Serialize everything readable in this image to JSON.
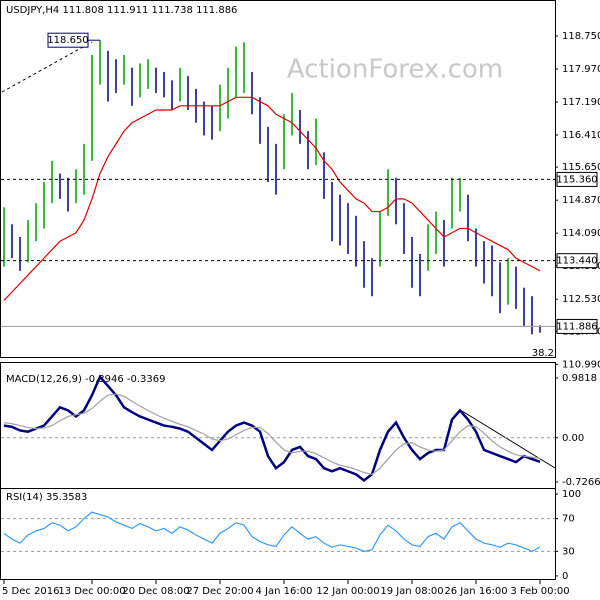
{
  "chart_data": [
    {
      "type": "ohlc",
      "title": "USDJPY,H4  111.808 111.911 111.738 111.886",
      "watermark": "ActionForex.com",
      "high": [
        114.7,
        114.3,
        114.0,
        114.4,
        114.8,
        115.3,
        115.8,
        115.5,
        115.4,
        115.6,
        116.2,
        118.3,
        118.65,
        118.4,
        118.2,
        118.3,
        118.0,
        118.1,
        118.2,
        118.0,
        117.9,
        117.7,
        118.0,
        117.8,
        117.5,
        117.2,
        117.1,
        117.6,
        118.0,
        118.5,
        118.6,
        117.9,
        117.3,
        116.6,
        116.2,
        116.9,
        117.4,
        117.0,
        116.5,
        116.8,
        116.0,
        115.3,
        115.0,
        114.8,
        114.5,
        113.9,
        113.5,
        114.6,
        115.6,
        115.4,
        114.8,
        114.0,
        113.6,
        114.3,
        114.6,
        114.4,
        115.4,
        115.4,
        115.0,
        114.2,
        113.9,
        113.8,
        113.4,
        113.5,
        113.3,
        112.8,
        112.6,
        111.911
      ],
      "low": [
        113.3,
        113.5,
        113.2,
        113.4,
        113.9,
        114.2,
        114.8,
        114.9,
        114.6,
        114.8,
        115.0,
        115.8,
        117.6,
        117.2,
        117.4,
        117.6,
        117.1,
        117.3,
        117.5,
        117.4,
        117.3,
        117.0,
        117.2,
        117.0,
        116.7,
        116.4,
        116.3,
        116.5,
        116.8,
        117.3,
        117.4,
        116.9,
        116.2,
        115.3,
        115.0,
        115.6,
        116.4,
        116.2,
        115.6,
        115.7,
        114.9,
        113.9,
        113.8,
        113.6,
        113.3,
        112.8,
        112.6,
        113.3,
        114.5,
        114.3,
        113.6,
        112.8,
        112.6,
        113.2,
        113.6,
        113.3,
        114.2,
        114.6,
        113.9,
        113.3,
        112.9,
        112.6,
        112.2,
        112.4,
        112.3,
        111.9,
        111.7,
        111.738
      ],
      "up_color": "#00a000",
      "down_color": "#000080",
      "series": [
        {
          "color": "#e00000",
          "values": [
            112.5,
            112.7,
            112.9,
            113.1,
            113.3,
            113.5,
            113.7,
            113.9,
            114.0,
            114.1,
            114.4,
            114.9,
            115.5,
            115.9,
            116.2,
            116.5,
            116.7,
            116.8,
            116.9,
            117.0,
            117.0,
            117.0,
            117.1,
            117.1,
            117.1,
            117.1,
            117.1,
            117.1,
            117.2,
            117.3,
            117.3,
            117.3,
            117.2,
            117.1,
            116.9,
            116.8,
            116.7,
            116.5,
            116.3,
            116.1,
            115.8,
            115.6,
            115.3,
            115.1,
            114.9,
            114.8,
            114.6,
            114.6,
            114.7,
            114.9,
            114.9,
            114.8,
            114.6,
            114.4,
            114.2,
            114.0,
            114.1,
            114.2,
            114.2,
            114.1,
            114.0,
            113.9,
            113.8,
            113.7,
            113.5,
            113.4,
            113.3,
            113.2
          ]
        }
      ],
      "ylim": [
        111.14,
        119.6
      ],
      "yticks": [
        {
          "value": 118.75,
          "label": "118.750"
        },
        {
          "value": 117.97,
          "label": "117.970"
        },
        {
          "value": 117.19,
          "label": "117.190"
        },
        {
          "value": 116.41,
          "label": "116.410"
        },
        {
          "value": 115.65,
          "label": "115.650"
        },
        {
          "value": 114.87,
          "label": "114.870"
        },
        {
          "value": 114.09,
          "label": "114.090"
        },
        {
          "value": 113.31,
          "label": "113.310"
        },
        {
          "value": 112.53,
          "label": "112.530"
        },
        {
          "value": 111.77,
          "label": "111.770"
        },
        {
          "value": 110.99,
          "label": "110.990"
        }
      ],
      "levels": [
        {
          "value": 115.36,
          "label": "115.360"
        },
        {
          "value": 113.44,
          "label": "113.440"
        }
      ],
      "last": {
        "value": 111.886,
        "label": "111.886"
      },
      "peak": {
        "value": 118.65,
        "label": "118.650"
      },
      "annotation": "38.2"
    },
    {
      "type": "line",
      "title": "MACD(12,26,9) -0.3946 -0.3369",
      "zero_line": true,
      "series": [
        {
          "color": "#000080",
          "values": [
            0.2,
            0.18,
            0.12,
            0.1,
            0.15,
            0.2,
            0.35,
            0.5,
            0.45,
            0.35,
            0.45,
            0.7,
            1.0,
            0.85,
            0.7,
            0.5,
            0.42,
            0.35,
            0.3,
            0.25,
            0.2,
            0.18,
            0.15,
            0.1,
            0.0,
            -0.1,
            -0.2,
            -0.05,
            0.1,
            0.2,
            0.25,
            0.2,
            0.1,
            -0.3,
            -0.5,
            -0.4,
            -0.2,
            -0.15,
            -0.3,
            -0.35,
            -0.5,
            -0.55,
            -0.5,
            -0.55,
            -0.6,
            -0.7,
            -0.6,
            -0.2,
            0.1,
            0.25,
            0.0,
            -0.2,
            -0.35,
            -0.25,
            -0.2,
            -0.2,
            0.3,
            0.45,
            0.3,
            0.1,
            -0.2,
            -0.25,
            -0.3,
            -0.35,
            -0.4,
            -0.3,
            -0.35,
            -0.3946
          ]
        },
        {
          "color": "#a0a0a0",
          "values": [
            0.25,
            0.23,
            0.2,
            0.17,
            0.15,
            0.16,
            0.2,
            0.28,
            0.35,
            0.38,
            0.4,
            0.48,
            0.6,
            0.7,
            0.72,
            0.68,
            0.6,
            0.52,
            0.45,
            0.38,
            0.32,
            0.27,
            0.22,
            0.18,
            0.12,
            0.06,
            -0.02,
            -0.05,
            -0.02,
            0.05,
            0.12,
            0.17,
            0.17,
            0.07,
            -0.07,
            -0.2,
            -0.25,
            -0.22,
            -0.22,
            -0.26,
            -0.33,
            -0.4,
            -0.45,
            -0.48,
            -0.52,
            -0.57,
            -0.6,
            -0.5,
            -0.35,
            -0.2,
            -0.1,
            -0.08,
            -0.15,
            -0.2,
            -0.22,
            -0.2,
            -0.05,
            0.1,
            0.2,
            0.18,
            0.08,
            -0.05,
            -0.15,
            -0.22,
            -0.28,
            -0.3,
            -0.32,
            -0.3369
          ]
        }
      ],
      "ylim": [
        -0.825,
        1.113
      ],
      "yticks": [
        0.9818,
        {
          "value": 0,
          "label": "0.00"
        },
        -0.7266
      ]
    },
    {
      "type": "line",
      "title": "RSI(14) 35.3583",
      "series": [
        {
          "color": "#3399ff",
          "values": [
            52,
            45,
            40,
            50,
            55,
            58,
            65,
            62,
            55,
            60,
            70,
            78,
            75,
            72,
            66,
            62,
            58,
            64,
            60,
            55,
            58,
            52,
            60,
            56,
            50,
            45,
            40,
            52,
            58,
            65,
            62,
            48,
            42,
            38,
            36,
            50,
            60,
            52,
            45,
            48,
            40,
            35,
            38,
            36,
            34,
            30,
            32,
            50,
            62,
            55,
            45,
            38,
            36,
            48,
            52,
            45,
            60,
            65,
            55,
            45,
            40,
            38,
            35,
            40,
            38,
            34,
            30,
            35.3583
          ]
        }
      ],
      "ylim": [
        -5,
        105
      ],
      "yticks": [
        100,
        70,
        30,
        0
      ],
      "levels": [
        70,
        30
      ],
      "categories": [
        "5 Dec 2016",
        null,
        null,
        null,
        null,
        null,
        null,
        null,
        null,
        null,
        null,
        "13 Dec 00:00",
        null,
        null,
        null,
        null,
        null,
        null,
        null,
        "20 Dec 08:00",
        null,
        null,
        null,
        null,
        null,
        null,
        null,
        "27 Dec 20:00",
        null,
        null,
        null,
        null,
        null,
        null,
        null,
        "4 Jan 16:00",
        null,
        null,
        null,
        null,
        null,
        null,
        null,
        "12 Jan 00:00",
        null,
        null,
        null,
        null,
        null,
        null,
        null,
        "19 Jan 08:00",
        null,
        null,
        null,
        null,
        null,
        null,
        null,
        "26 Jan 16:00",
        null,
        null,
        null,
        null,
        null,
        null,
        null,
        "3 Feb 00:00"
      ]
    }
  ]
}
